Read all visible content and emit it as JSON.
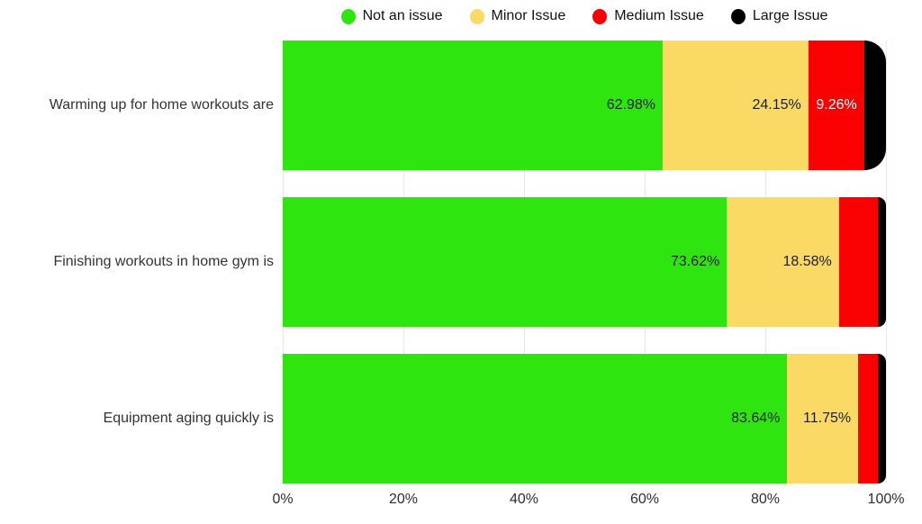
{
  "chart_data": {
    "type": "bar",
    "orientation": "horizontal",
    "stacked": true,
    "title": "",
    "xlabel": "",
    "ylabel": "",
    "xlim": [
      0,
      100
    ],
    "grid": "vertical",
    "legend_position": "top",
    "background": "#ffffff",
    "gridline_color": "#e7e7e7",
    "categories": [
      "Warming up for home workouts are",
      "Finishing workouts in home gym is",
      "Equipment aging quickly is"
    ],
    "series": [
      {
        "name": "Not an issue",
        "color": "#2fe50f",
        "label_color": "#1f1f1f",
        "values": [
          62.98,
          73.62,
          83.64
        ],
        "labels": [
          "62.98%",
          "73.62%",
          "83.64%"
        ]
      },
      {
        "name": "Minor Issue",
        "color": "#fad964",
        "label_color": "#1f1f1f",
        "values": [
          24.15,
          18.58,
          11.75
        ],
        "labels": [
          "24.15%",
          "18.58%",
          "11.75%"
        ]
      },
      {
        "name": "Medium Issue",
        "color": "#fb0000",
        "label_color": "#ffffff",
        "values": [
          9.26,
          6.5,
          3.3
        ],
        "labels": [
          "9.26%",
          "",
          ""
        ]
      },
      {
        "name": "Large Issue",
        "color": "#000000",
        "label_color": "#ffffff",
        "values": [
          3.61,
          1.3,
          1.31
        ],
        "labels": [
          "",
          "",
          ""
        ]
      }
    ],
    "x_ticks": [
      "0%",
      "20%",
      "40%",
      "60%",
      "80%",
      "100%"
    ],
    "x_tick_positions": [
      0,
      20,
      40,
      60,
      80,
      100
    ]
  }
}
